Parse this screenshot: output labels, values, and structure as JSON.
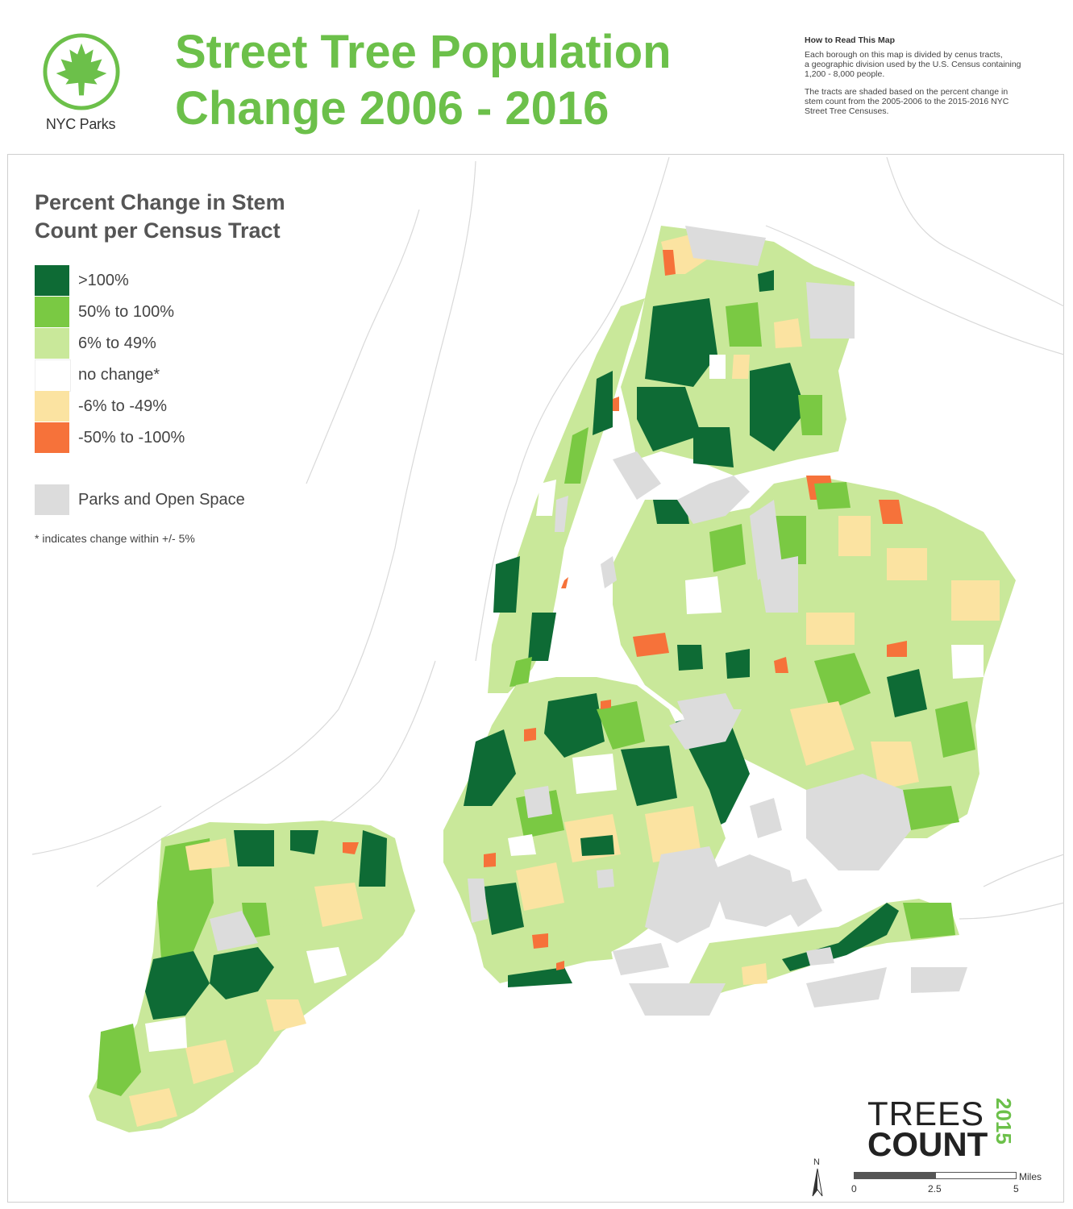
{
  "header": {
    "logo_text": "NYC Parks",
    "title_line1": "Street Tree Population",
    "title_line2": "Change 2006 - 2016",
    "howto_heading": "How to Read This Map",
    "howto_p1_line1": "Each borough on this map is divided by cenus tracts,",
    "howto_p1_line2": "a geographic division used by the U.S. Census containing",
    "howto_p1_line3": "1,200 - 8,000 people.",
    "howto_p2_line1": "The tracts are shaded based on the percent change in",
    "howto_p2_line2": "stem count from the 2005-2006 to the 2015-2016 NYC",
    "howto_p2_line3": "Street Tree Censuses."
  },
  "legend": {
    "title_line1": "Percent Change in Stem",
    "title_line2": "Count per Census Tract",
    "items": [
      {
        "label": ">100%",
        "color": "#0e6b35"
      },
      {
        "label": "50% to 100%",
        "color": "#7ac943"
      },
      {
        "label": "6% to 49%",
        "color": "#c9e89a"
      },
      {
        "label": "no change*",
        "color": "#ffffff"
      },
      {
        "label": "-6% to -49%",
        "color": "#fbe3a1"
      },
      {
        "label": "-50% to -100%",
        "color": "#f6723a"
      }
    ],
    "parks": {
      "label": "Parks and Open Space",
      "color": "#dcdcdc"
    },
    "note": "* indicates change within +/- 5%"
  },
  "branding": {
    "line1": "TREES",
    "line2": "COUNT",
    "year": "2015"
  },
  "scale": {
    "north": "N",
    "ticks": [
      "0",
      "2.5",
      "5"
    ],
    "unit": "Miles"
  }
}
